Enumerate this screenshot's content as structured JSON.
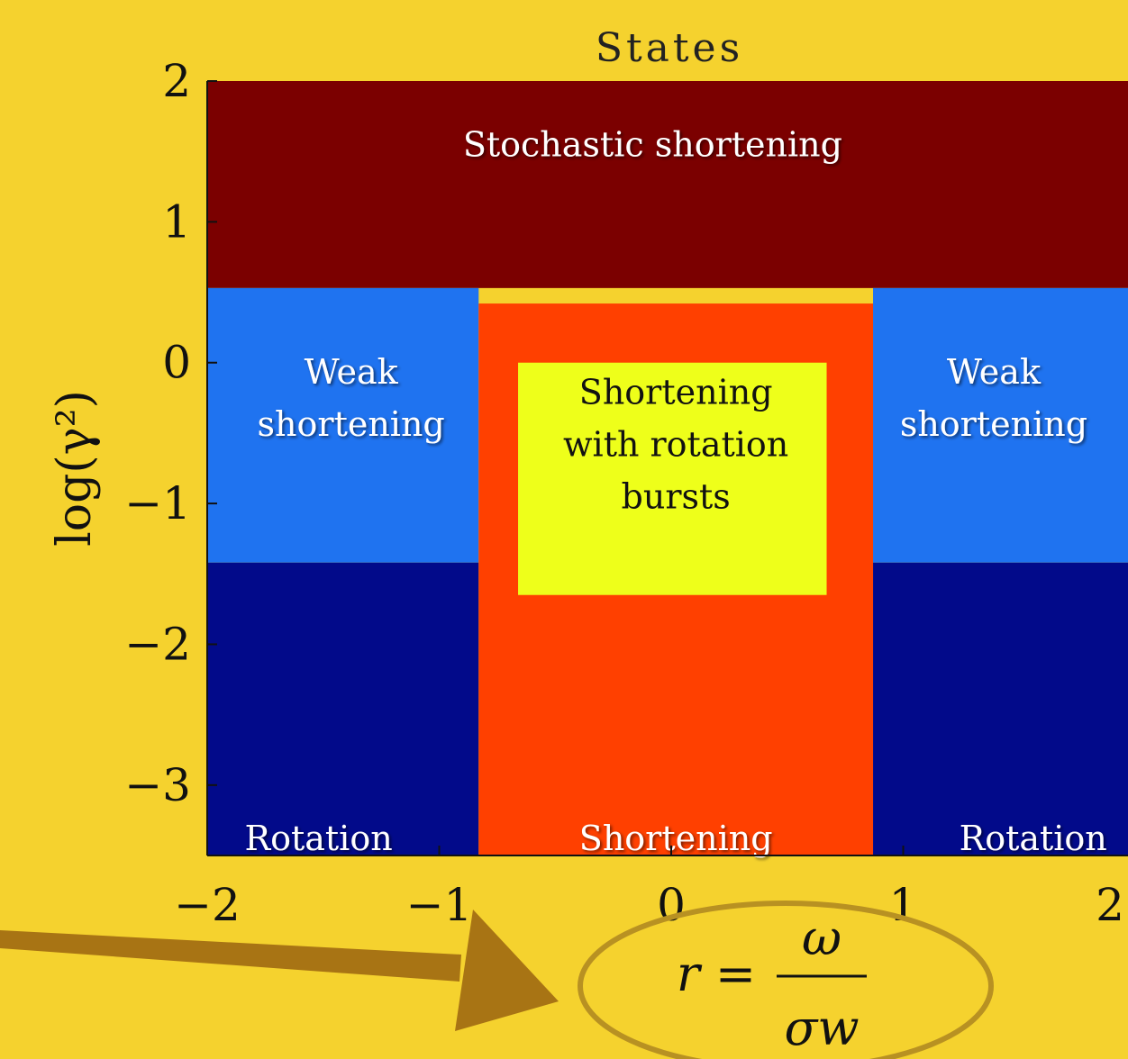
{
  "chart_data": {
    "type": "heatmap",
    "title": "States",
    "ylabel": "log(γ²)",
    "xlabel": "r = ω / σw",
    "xlabel_parts": {
      "lhs": "r =",
      "num": "ω",
      "den": "σw"
    },
    "xlim": [
      -2,
      2
    ],
    "ylim": [
      -3.5,
      2
    ],
    "xticks": [
      "−2",
      "−1",
      "0",
      "1",
      "2"
    ],
    "xtick_values": [
      -2,
      -1,
      0,
      1,
      2
    ],
    "yticks": [
      "2",
      "1",
      "0",
      "−1",
      "−2",
      "−3"
    ],
    "ytick_values": [
      2,
      1,
      0,
      -1,
      -2,
      -3
    ],
    "states": {
      "stochastic": {
        "color": "#7b0000"
      },
      "weak": {
        "color": "#1f73f0"
      },
      "rotation": {
        "color": "#020a8a"
      },
      "cyan": {
        "color": "#24f5de"
      },
      "shortening": {
        "color": "#ff4000"
      },
      "bursts": {
        "color": "#eeff1a"
      }
    },
    "regions": [
      {
        "state": "stochastic",
        "x": [
          -2,
          2
        ],
        "y": [
          0.53,
          2
        ]
      },
      {
        "state": "weak",
        "x": [
          -2,
          -0.83
        ],
        "y": [
          -1.42,
          0.53
        ]
      },
      {
        "state": "weak",
        "x": [
          0.87,
          2
        ],
        "y": [
          -1.42,
          0.53
        ]
      },
      {
        "state": "rotation",
        "x": [
          -2,
          -0.83
        ],
        "y": [
          -3.5,
          -1.42
        ]
      },
      {
        "state": "rotation",
        "x": [
          0.87,
          2
        ],
        "y": [
          -3.5,
          -1.42
        ]
      },
      {
        "state": "shortening",
        "x": [
          -0.83,
          0.87
        ],
        "y": [
          -3.5,
          0.42
        ]
      },
      {
        "state": "bursts",
        "x": [
          -0.66,
          0.67
        ],
        "y": [
          -1.65,
          0
        ]
      }
    ],
    "labels": [
      {
        "id": "stochastic",
        "lines": [
          "Stochastic shortening"
        ],
        "x": -0.08,
        "y": 1.55,
        "dark": false
      },
      {
        "id": "weak_left",
        "lines": [
          "Weak",
          "shortening"
        ],
        "x": -1.38,
        "y": -0.25,
        "dark": false
      },
      {
        "id": "weak_right",
        "lines": [
          "Weak",
          "shortening"
        ],
        "x": 1.39,
        "y": -0.25,
        "dark": false
      },
      {
        "id": "bursts",
        "lines": [
          "Shortening",
          "with rotation",
          "bursts"
        ],
        "x": 0.02,
        "y": -0.58,
        "dark": true
      },
      {
        "id": "rotation_left",
        "lines": [
          "Rotation"
        ],
        "x": -1.52,
        "y": -3.38,
        "dark": false
      },
      {
        "id": "shortening_bottom",
        "lines": [
          "Shortening"
        ],
        "x": 0.02,
        "y": -3.38,
        "dark": false
      },
      {
        "id": "rotation_right",
        "lines": [
          "Rotation"
        ],
        "x": 1.56,
        "y": -3.38,
        "dark": false
      }
    ]
  },
  "annotation": {
    "arrow_color": "#a87414",
    "ellipse_color": "#b89122"
  }
}
